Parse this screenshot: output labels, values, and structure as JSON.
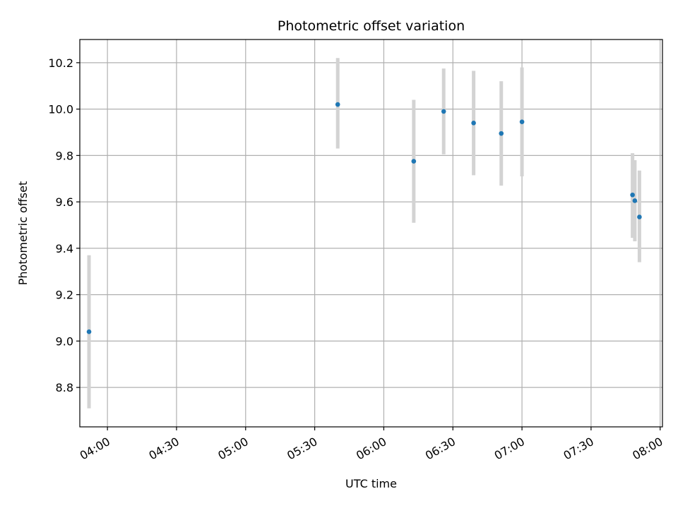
{
  "chart_data": {
    "type": "scatter",
    "title": "Photometric offset variation",
    "xlabel": "UTC time",
    "ylabel": "Photometric offset",
    "x_unit": "UTC time (HH:MM)",
    "xlim": [
      "03:48",
      "08:01"
    ],
    "ylim": [
      8.63,
      10.3
    ],
    "x_ticks": [
      "04:00",
      "04:30",
      "05:00",
      "05:30",
      "06:00",
      "06:30",
      "07:00",
      "07:30",
      "08:00"
    ],
    "y_ticks": [
      "8.8",
      "9.0",
      "9.2",
      "9.4",
      "9.6",
      "9.8",
      "10.0",
      "10.2"
    ],
    "grid": true,
    "series": [
      {
        "marker_color": "#1f77b4",
        "errorbar_color": "#d3d3d3",
        "points": [
          {
            "x": "03:52",
            "y": 9.04,
            "ylow": 8.71,
            "yhigh": 9.37
          },
          {
            "x": "05:40",
            "y": 10.02,
            "ylow": 9.83,
            "yhigh": 10.22
          },
          {
            "x": "06:13",
            "y": 9.775,
            "ylow": 9.51,
            "yhigh": 10.04
          },
          {
            "x": "06:26",
            "y": 9.99,
            "ylow": 9.805,
            "yhigh": 10.175
          },
          {
            "x": "06:39",
            "y": 9.94,
            "ylow": 9.715,
            "yhigh": 10.165
          },
          {
            "x": "06:51",
            "y": 9.895,
            "ylow": 9.67,
            "yhigh": 10.12
          },
          {
            "x": "07:00",
            "y": 9.945,
            "ylow": 9.71,
            "yhigh": 10.18
          },
          {
            "x": "07:48",
            "y": 9.63,
            "ylow": 9.445,
            "yhigh": 9.81
          },
          {
            "x": "07:49",
            "y": 9.605,
            "ylow": 9.43,
            "yhigh": 9.78
          },
          {
            "x": "07:51",
            "y": 9.535,
            "ylow": 9.34,
            "yhigh": 9.735
          }
        ]
      }
    ]
  }
}
